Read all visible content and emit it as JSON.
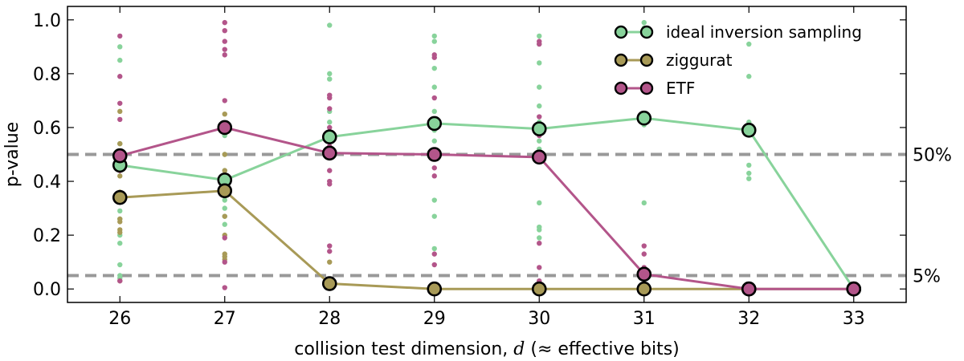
{
  "chart_data": {
    "type": "line",
    "xlabel": "collision test dimension, d (≈ effective bits)",
    "xlabel_prefix": "collision test dimension, ",
    "xlabel_var": "d",
    "xlabel_suffix": " (≈ effective bits)",
    "ylabel": "p-value",
    "x": [
      26,
      27,
      28,
      29,
      30,
      31,
      32,
      33
    ],
    "xlim": [
      25.5,
      33.5
    ],
    "ylim": [
      -0.05,
      1.05
    ],
    "yticks": [
      0.0,
      0.2,
      0.4,
      0.6,
      0.8,
      1.0
    ],
    "ytick_labels": [
      "0.0",
      "0.2",
      "0.4",
      "0.6",
      "0.8",
      "1.0"
    ],
    "xtick_labels": [
      "26",
      "27",
      "28",
      "29",
      "30",
      "31",
      "32",
      "33"
    ],
    "grid": false,
    "legend_position": "top-right",
    "reference_lines": [
      {
        "y": 0.5,
        "label": "50%",
        "color": "#999999"
      },
      {
        "y": 0.05,
        "label": "5%",
        "color": "#999999"
      }
    ],
    "series": [
      {
        "name": "ideal inversion sampling",
        "color": "#88d39b",
        "values": [
          0.46,
          0.405,
          0.565,
          0.615,
          0.595,
          0.635,
          0.59,
          0.0
        ],
        "samples": [
          [
            0.9,
            0.85,
            0.54,
            0.48,
            0.45,
            0.29,
            0.26,
            0.2,
            0.17,
            0.09,
            0.05,
            0.04
          ],
          [
            0.6,
            0.57,
            0.5,
            0.44,
            0.41,
            0.33,
            0.3,
            0.27,
            0.24
          ],
          [
            0.98,
            0.8,
            0.78,
            0.66,
            0.62,
            0.58,
            0.56
          ],
          [
            0.94,
            0.92,
            0.82,
            0.75,
            0.66,
            0.59,
            0.55,
            0.33,
            0.27,
            0.15
          ],
          [
            0.94,
            0.91,
            0.84,
            0.75,
            0.68,
            0.62,
            0.55,
            0.52,
            0.5,
            0.32,
            0.23,
            0.22,
            0.19
          ],
          [
            0.99,
            0.97,
            0.61,
            0.32
          ],
          [
            0.91,
            0.79,
            0.62,
            0.59,
            0.46,
            0.43,
            0.41
          ],
          []
        ]
      },
      {
        "name": "ziggurat",
        "color": "#a89a57",
        "values": [
          0.34,
          0.365,
          0.02,
          0.0,
          0.0,
          0.0,
          0.0,
          0.0
        ],
        "samples": [
          [
            0.66,
            0.54,
            0.42,
            0.36,
            0.26,
            0.25,
            0.22,
            0.21,
            0.03
          ],
          [
            0.65,
            0.5,
            0.44,
            0.38,
            0.36,
            0.27,
            0.2,
            0.13,
            0.12,
            0.11
          ],
          [
            0.1
          ],
          [],
          [],
          [],
          [],
          []
        ]
      },
      {
        "name": "ETF",
        "color": "#b3558a",
        "values": [
          0.495,
          0.6,
          0.505,
          0.5,
          0.49,
          0.055,
          0.0,
          0.0
        ],
        "samples": [
          [
            0.94,
            0.79,
            0.69,
            0.63,
            0.49,
            0.47,
            0.44,
            0.03
          ],
          [
            0.99,
            0.96,
            0.92,
            0.89,
            0.87,
            0.7,
            0.19,
            0.1,
            0.005
          ],
          [
            0.72,
            0.71,
            0.67,
            0.6,
            0.53,
            0.51,
            0.44,
            0.4,
            0.39,
            0.16,
            0.14
          ],
          [
            0.87,
            0.86,
            0.71,
            0.6,
            0.5,
            0.45,
            0.42,
            0.13,
            0.09
          ],
          [
            0.92,
            0.91,
            0.64,
            0.6,
            0.57,
            0.49,
            0.17,
            0.08,
            0.03
          ],
          [
            0.16,
            0.13,
            0.08
          ],
          [],
          []
        ]
      }
    ]
  }
}
